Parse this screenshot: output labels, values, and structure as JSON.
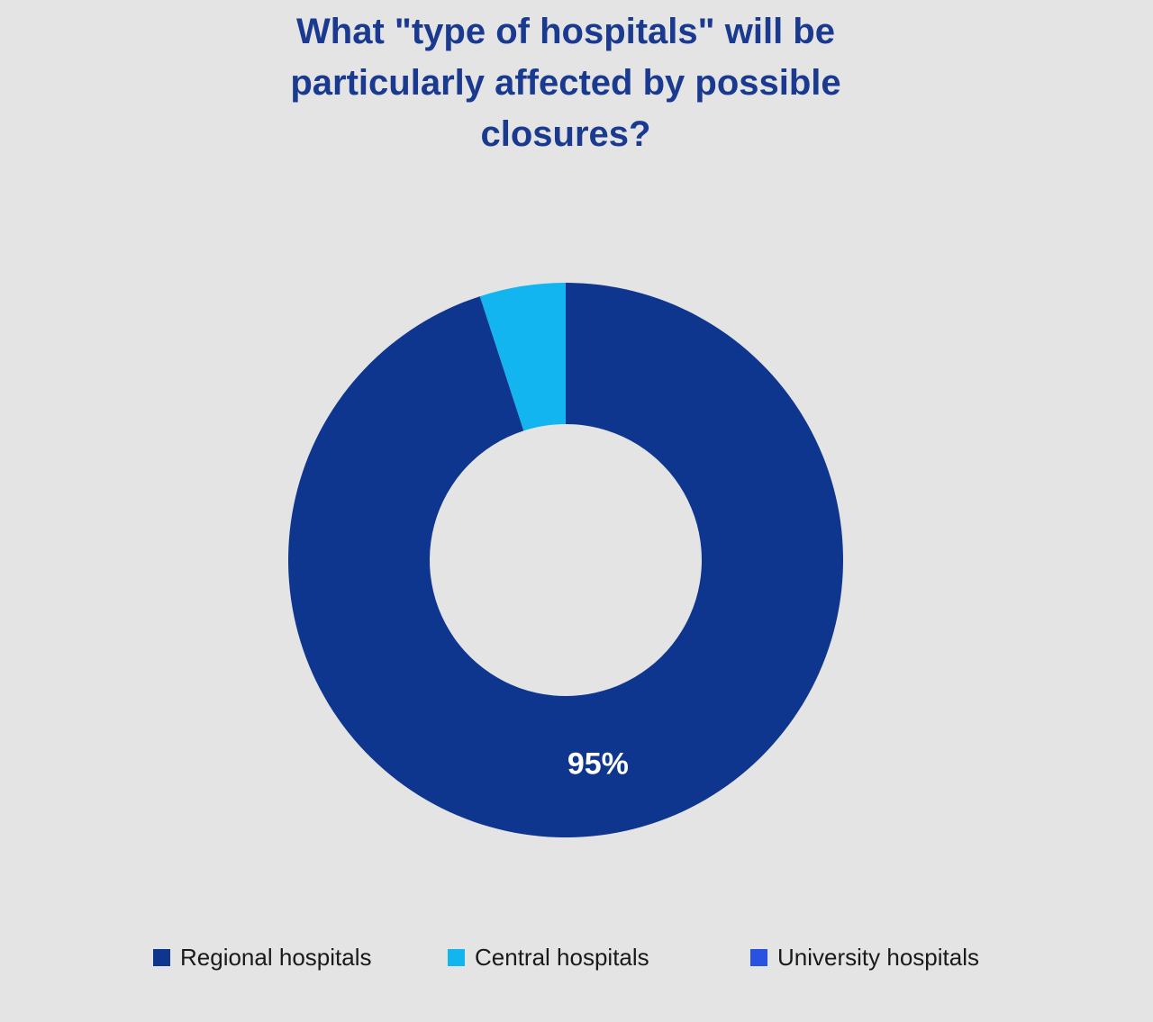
{
  "page": {
    "background_color": "#e4e4e4"
  },
  "title": {
    "text": "What \"type of hospitals\" will be particularly affected by possible closures?",
    "lines": [
      "What \"type of hospitals\" will be",
      "particularly affected by possible",
      "closures?"
    ],
    "color": "#1a3a90"
  },
  "chart_data": {
    "type": "pie",
    "subtype": "donut",
    "title": "What \"type of hospitals\" will be particularly affected by possible closures?",
    "categories": [
      "Regional hospitals",
      "Central hospitals",
      "University hospitals"
    ],
    "values": [
      95,
      5,
      0
    ],
    "unit": "%",
    "series": [
      {
        "name": "Regional hospitals",
        "value": 95,
        "color": "#0e368f",
        "slice_label": "95%"
      },
      {
        "name": "Central hospitals",
        "value": 5,
        "color": "#12b5f0",
        "slice_label": ""
      },
      {
        "name": "University hospitals",
        "value": 0,
        "color": "#2a52e0",
        "slice_label": ""
      }
    ],
    "start_angle_deg": 0,
    "direction": "clockwise",
    "inner_radius_ratio": 0.49,
    "slice_label_color": "#ffffff",
    "legend_position": "bottom",
    "grid": false
  }
}
